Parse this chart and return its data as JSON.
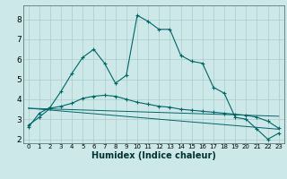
{
  "title": "",
  "xlabel": "Humidex (Indice chaleur)",
  "bg_color": "#cce8e8",
  "grid_color": "#aacccc",
  "line_color": "#006666",
  "xlim": [
    -0.5,
    23.5
  ],
  "ylim": [
    1.8,
    8.7
  ],
  "x_ticks": [
    0,
    1,
    2,
    3,
    4,
    5,
    6,
    7,
    8,
    9,
    10,
    11,
    12,
    13,
    14,
    15,
    16,
    17,
    18,
    19,
    20,
    21,
    22,
    23
  ],
  "y_ticks": [
    2,
    3,
    4,
    5,
    6,
    7,
    8
  ],
  "series1": {
    "x": [
      0,
      1,
      2,
      3,
      4,
      5,
      6,
      7,
      8,
      9,
      10,
      11,
      12,
      13,
      14,
      15,
      16,
      17,
      18,
      19,
      20,
      21,
      22,
      23
    ],
    "y": [
      2.6,
      3.3,
      3.6,
      4.4,
      5.3,
      6.1,
      6.5,
      5.8,
      4.8,
      5.2,
      8.2,
      7.9,
      7.5,
      7.5,
      6.2,
      5.9,
      5.8,
      4.6,
      4.3,
      3.1,
      3.0,
      2.5,
      2.0,
      2.3
    ]
  },
  "series2": {
    "x": [
      0,
      1,
      2,
      3,
      4,
      5,
      6,
      7,
      8,
      9,
      10,
      11,
      12,
      13,
      14,
      15,
      16,
      17,
      18,
      19,
      20,
      21,
      22,
      23
    ],
    "y": [
      2.7,
      3.1,
      3.55,
      3.65,
      3.8,
      4.05,
      4.15,
      4.2,
      4.15,
      4.0,
      3.85,
      3.75,
      3.65,
      3.6,
      3.5,
      3.45,
      3.4,
      3.35,
      3.3,
      3.25,
      3.2,
      3.1,
      2.9,
      2.55
    ]
  },
  "series3": {
    "x": [
      0,
      23
    ],
    "y": [
      3.55,
      2.5
    ]
  },
  "series4": {
    "x": [
      0,
      23
    ],
    "y": [
      3.55,
      3.15
    ]
  }
}
